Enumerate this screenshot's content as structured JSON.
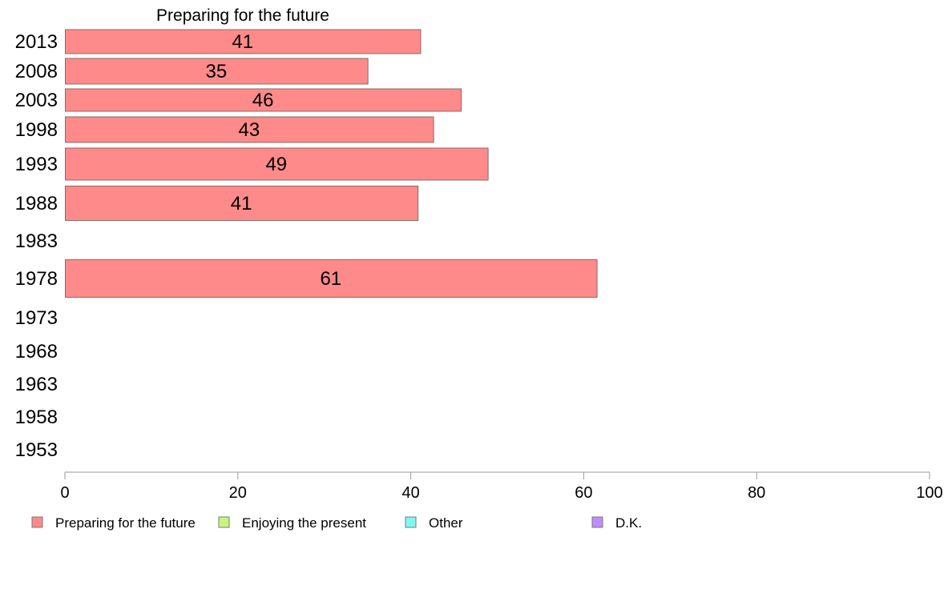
{
  "chart_data": {
    "type": "bar",
    "orientation": "horizontal",
    "title": "Preparing for the future",
    "xlabel": "",
    "ylabel": "",
    "xlim": [
      0,
      100
    ],
    "x_ticks": [
      0,
      20,
      40,
      60,
      80,
      100
    ],
    "grid": false,
    "legend_position": "bottom",
    "categories": [
      "2013",
      "2008",
      "2003",
      "1998",
      "1993",
      "1988",
      "1983",
      "1978",
      "1973",
      "1968",
      "1963",
      "1958",
      "1953"
    ],
    "series": [
      {
        "name": "Preparing for the future",
        "color": "#ff8a8a",
        "values": [
          41,
          35,
          46,
          43,
          49,
          41,
          null,
          61,
          null,
          null,
          null,
          null,
          null
        ],
        "precise": [
          41.1,
          35.0,
          45.8,
          42.6,
          48.9,
          40.8,
          null,
          61.5,
          null,
          null,
          null,
          null,
          null
        ]
      }
    ],
    "legend": [
      {
        "name": "Preparing for the future",
        "color": "#ff8a8a"
      },
      {
        "name": "Enjoying the present",
        "color": "#c6f57d"
      },
      {
        "name": "Other",
        "color": "#80f7f2"
      },
      {
        "name": "D.K.",
        "color": "#c08cff"
      }
    ]
  }
}
